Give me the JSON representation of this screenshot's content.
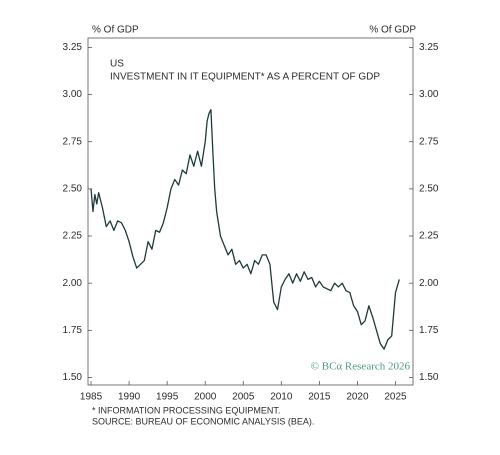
{
  "chart_data": {
    "type": "line",
    "title": "US",
    "subtitle": "INVESTMENT IN IT EQUIPMENT* AS A PERCENT OF GDP",
    "y_label": "% Of GDP",
    "y2_label": "% Of GDP",
    "watermark": "© BCα Research 2026",
    "footnotes": [
      "* INFORMATION PROCESSING EQUIPMENT.",
      "SOURCE: BUREAU OF ECONOMIC ANALYSIS (BEA)."
    ],
    "xlim": [
      1984.6,
      2027.3
    ],
    "xticks": [
      1985,
      1990,
      1995,
      2000,
      2005,
      2010,
      2015,
      2020,
      2025
    ],
    "ylim": [
      1.46,
      3.3
    ],
    "yticks": [
      {
        "value": 1.5,
        "label": "1.50"
      },
      1.75,
      {
        "value": 2,
        "label": "2.00"
      },
      2.25,
      {
        "value": 2.5,
        "label": "2.50"
      },
      2.75,
      {
        "value": 3,
        "label": "3.00"
      },
      3.25
    ],
    "series": [
      {
        "name": "US",
        "color": "#1e3a3a",
        "x": [
          1985,
          1985.25,
          1985.5,
          1985.75,
          1986,
          1986.5,
          1987,
          1987.5,
          1988,
          1988.5,
          1989,
          1989.5,
          1990,
          1990.5,
          1991,
          1991.5,
          1992,
          1992.5,
          1993,
          1993.5,
          1994,
          1994.5,
          1995,
          1995.5,
          1996,
          1996.5,
          1997,
          1997.5,
          1998,
          1998.5,
          1999,
          1999.5,
          2000,
          2000.25,
          2000.5,
          2000.75,
          2001,
          2001.25,
          2001.5,
          2002,
          2002.5,
          2003,
          2003.5,
          2004,
          2004.5,
          2005,
          2005.5,
          2006,
          2006.5,
          2007,
          2007.5,
          2008,
          2008.5,
          2009,
          2009.5,
          2010,
          2010.5,
          2011,
          2011.5,
          2012,
          2012.5,
          2013,
          2013.5,
          2014,
          2014.5,
          2015,
          2015.5,
          2016,
          2016.5,
          2017,
          2017.5,
          2018,
          2018.5,
          2019,
          2019.5,
          2020,
          2020.5,
          2021,
          2021.5,
          2022,
          2022.5,
          2023,
          2023.5,
          2024,
          2024.5,
          2025,
          2025.5
        ],
        "values": [
          2.5,
          2.38,
          2.47,
          2.42,
          2.48,
          2.4,
          2.3,
          2.33,
          2.28,
          2.33,
          2.32,
          2.28,
          2.22,
          2.14,
          2.08,
          2.1,
          2.12,
          2.22,
          2.18,
          2.28,
          2.27,
          2.32,
          2.4,
          2.5,
          2.55,
          2.52,
          2.6,
          2.58,
          2.68,
          2.62,
          2.7,
          2.62,
          2.75,
          2.86,
          2.9,
          2.92,
          2.7,
          2.5,
          2.38,
          2.25,
          2.2,
          2.15,
          2.18,
          2.1,
          2.12,
          2.08,
          2.1,
          2.05,
          2.12,
          2.1,
          2.15,
          2.15,
          2.1,
          1.9,
          1.86,
          1.98,
          2.02,
          2.05,
          2.0,
          2.05,
          2.01,
          2.06,
          2.02,
          2.03,
          1.98,
          2.01,
          1.98,
          1.97,
          1.96,
          2.0,
          1.98,
          2.0,
          1.96,
          1.95,
          1.88,
          1.85,
          1.78,
          1.8,
          1.88,
          1.82,
          1.75,
          1.68,
          1.65,
          1.7,
          1.72,
          1.95,
          2.02
        ]
      }
    ]
  }
}
